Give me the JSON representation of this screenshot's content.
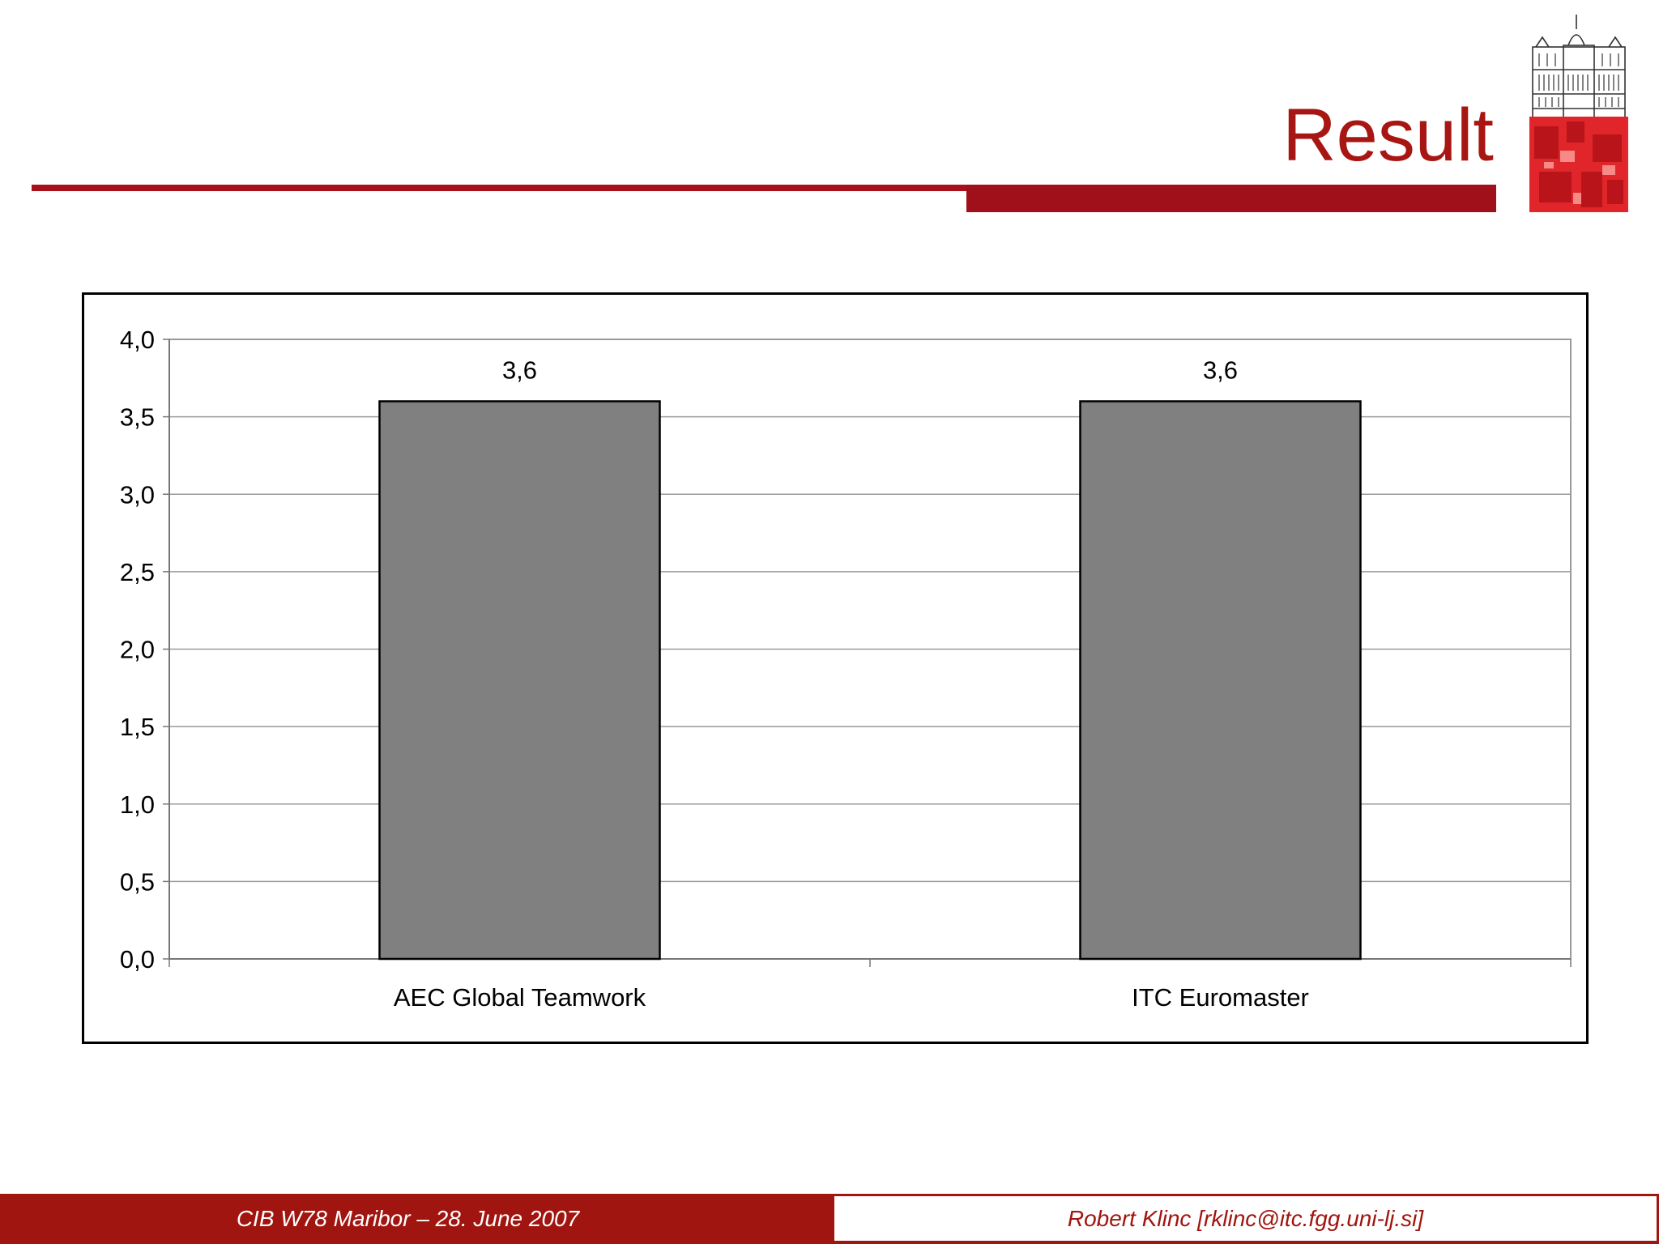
{
  "slide": {
    "title": "Result"
  },
  "footer": {
    "left_text": "CIB W78 Maribor – 28. June 2007",
    "right_text": "Robert Klinc [rklinc@itc.fgg.uni-lj.si]"
  },
  "colors": {
    "brand_red": "#a0150f",
    "bar_fill": "#808080",
    "grid": "#9a9a9a"
  },
  "chart_data": {
    "type": "bar",
    "categories": [
      "AEC Global Teamwork",
      "ITC Euromaster"
    ],
    "values": [
      3.6,
      3.6
    ],
    "value_labels": [
      "3,6",
      "3,6"
    ],
    "ylim": [
      0,
      4.0
    ],
    "yticks": [
      0,
      0.5,
      1.0,
      1.5,
      2.0,
      2.5,
      3.0,
      3.5,
      4.0
    ],
    "ytick_labels": [
      "0,0",
      "0,5",
      "1,0",
      "1,5",
      "2,0",
      "2,5",
      "3,0",
      "3,5",
      "4,0"
    ],
    "grid": true,
    "legend": "none"
  }
}
